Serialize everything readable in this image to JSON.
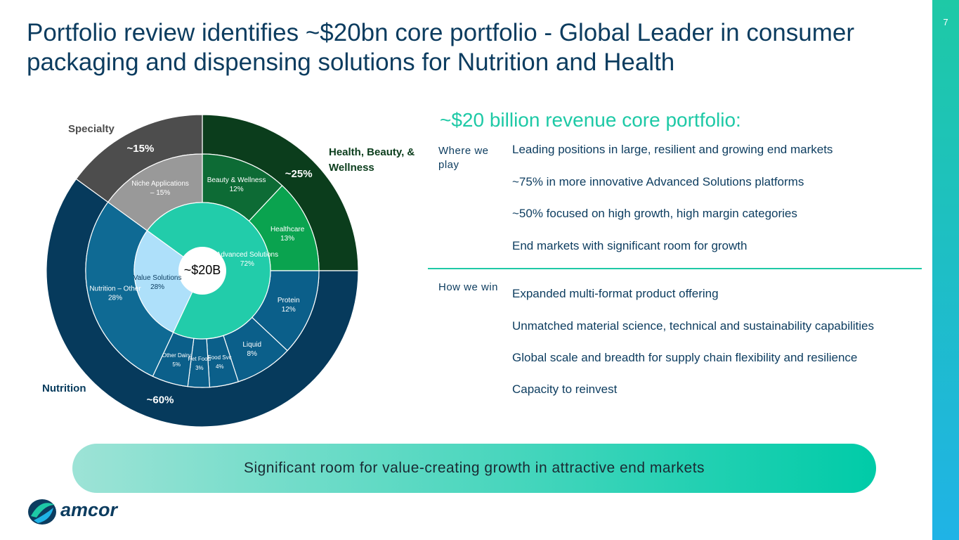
{
  "title": "Portfolio review identifies ~$20bn core portfolio - Global Leader in consumer packaging and dispensing solutions for Nutrition and Health",
  "page_number": "7",
  "chart_data": {
    "type": "sunburst",
    "center_label": "~$20B",
    "outer": {
      "categories": [
        "Health, Beauty, & Wellness",
        "Nutrition",
        "Specialty"
      ],
      "values": [
        25,
        60,
        15
      ],
      "value_labels": [
        "~25%",
        "~60%",
        "~15%"
      ],
      "colors": [
        "#0b3d1c",
        "#063a5c",
        "#4d4d4d"
      ],
      "label_colors": [
        "#0b3d1c",
        "#063a5c",
        "#4d4d4d"
      ]
    },
    "middle": {
      "categories": [
        "Beauty & Wellness",
        "Healthcare",
        "Protein",
        "Liquid",
        "Food Svc",
        "Pet Food",
        "Other Dairy",
        "Nutrition – Other",
        "Niche Applications"
      ],
      "values": [
        12,
        13,
        12,
        8,
        4,
        3,
        5,
        28,
        15
      ],
      "value_labels": [
        "12%",
        "13%",
        "12%",
        "8%",
        "4%",
        "3%",
        "5%",
        "28%",
        "– 15%"
      ],
      "colors": [
        "#0d6b35",
        "#0aa34f",
        "#0b5f8a",
        "#0b5f8a",
        "#0b5f8a",
        "#0b5f8a",
        "#0b5f8a",
        "#0f6a94",
        "#999999"
      ]
    },
    "inner": {
      "categories": [
        "Advanced Solutions",
        "Value Solutions"
      ],
      "values": [
        72,
        28
      ],
      "value_labels": [
        "72%",
        "28%"
      ],
      "colors": [
        "#22ccaa",
        "#aee0fa"
      ],
      "label_colors": [
        "#ffffff",
        "#0c3c5f"
      ]
    }
  },
  "summary": {
    "heading": "~$20 billion revenue core portfolio:",
    "sections": [
      {
        "label": "Where we play",
        "items": [
          "Leading positions in large, resilient and growing end markets",
          "~75% in more innovative Advanced Solutions platforms",
          "~50% focused on high growth, high margin categories",
          "End markets with significant room for growth"
        ]
      },
      {
        "label": "How we win",
        "items": [
          "Expanded multi-format product offering",
          "Unmatched material science, technical and sustainability capabilities",
          "Global scale and breadth for supply chain flexibility and resilience",
          "Capacity to reinvest"
        ]
      }
    ]
  },
  "banner": "Significant room for value-creating growth in attractive end markets",
  "logo": "amcor"
}
